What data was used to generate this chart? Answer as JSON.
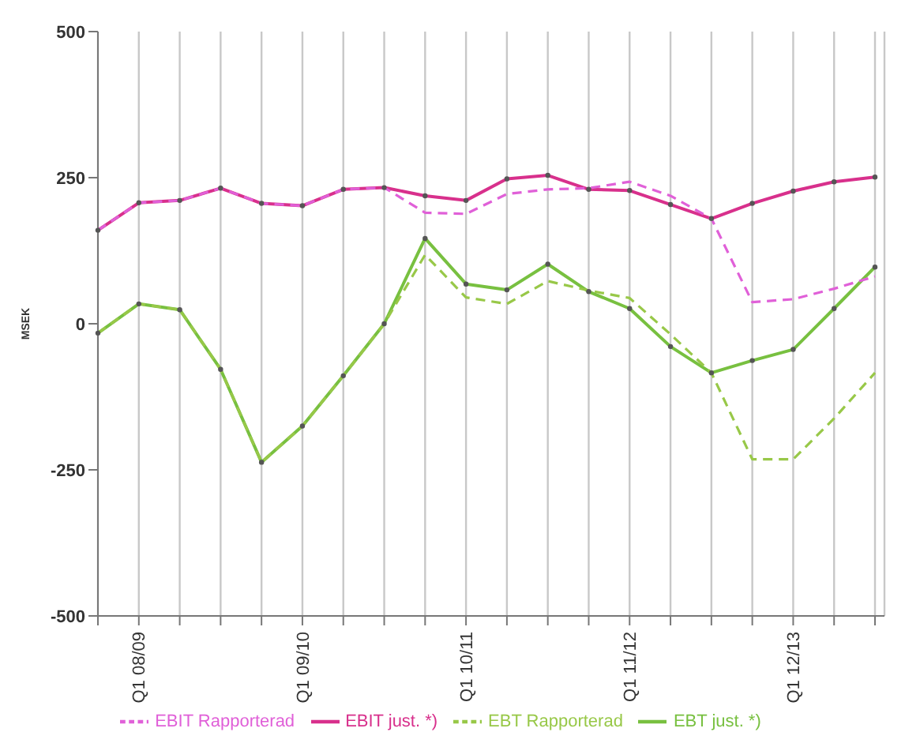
{
  "chart_data": {
    "type": "line",
    "ylabel": "MSEK",
    "categories": [
      null,
      "Q1 08/09",
      null,
      null,
      null,
      "Q1 09/10",
      null,
      null,
      null,
      "Q1 10/11",
      null,
      null,
      null,
      "Q1 11/12",
      null,
      null,
      null,
      "Q1 12/13",
      null,
      null
    ],
    "ylim": [
      -500,
      500
    ],
    "yticks": [
      -500,
      -250,
      0,
      250,
      500
    ],
    "grid": "x",
    "legend": "bottom",
    "series": [
      {
        "name": "EBIT just. *)",
        "color": "#d8308c",
        "line_style": "solid",
        "marker": "circle",
        "values": [
          160,
          207,
          211,
          232,
          206,
          202,
          230,
          233,
          219,
          211,
          248,
          254,
          230,
          228,
          204,
          180,
          206,
          227,
          243,
          251
        ]
      },
      {
        "name": "EBT just. *)",
        "color": "#78c040",
        "line_style": "solid",
        "marker": "circle",
        "values": [
          -16,
          34,
          24,
          -78,
          -237,
          -175,
          -89,
          0,
          146,
          68,
          58,
          102,
          55,
          26,
          -39,
          -84,
          -63,
          -44,
          26,
          97
        ]
      },
      {
        "name": "EBIT Rapporterad",
        "color": "#e060d8",
        "line_style": "dashed",
        "marker": "none",
        "values": [
          160,
          207,
          211,
          232,
          206,
          202,
          230,
          233,
          190,
          188,
          222,
          230,
          232,
          243,
          219,
          180,
          37,
          42,
          60,
          81
        ]
      },
      {
        "name": "EBT Rapporterad",
        "color": "#98c848",
        "line_style": "dashed",
        "marker": "none",
        "values": [
          -16,
          34,
          24,
          -78,
          -237,
          -175,
          -89,
          0,
          118,
          45,
          34,
          73,
          57,
          44,
          -18,
          -84,
          -232,
          -232,
          -162,
          -84
        ]
      }
    ]
  }
}
